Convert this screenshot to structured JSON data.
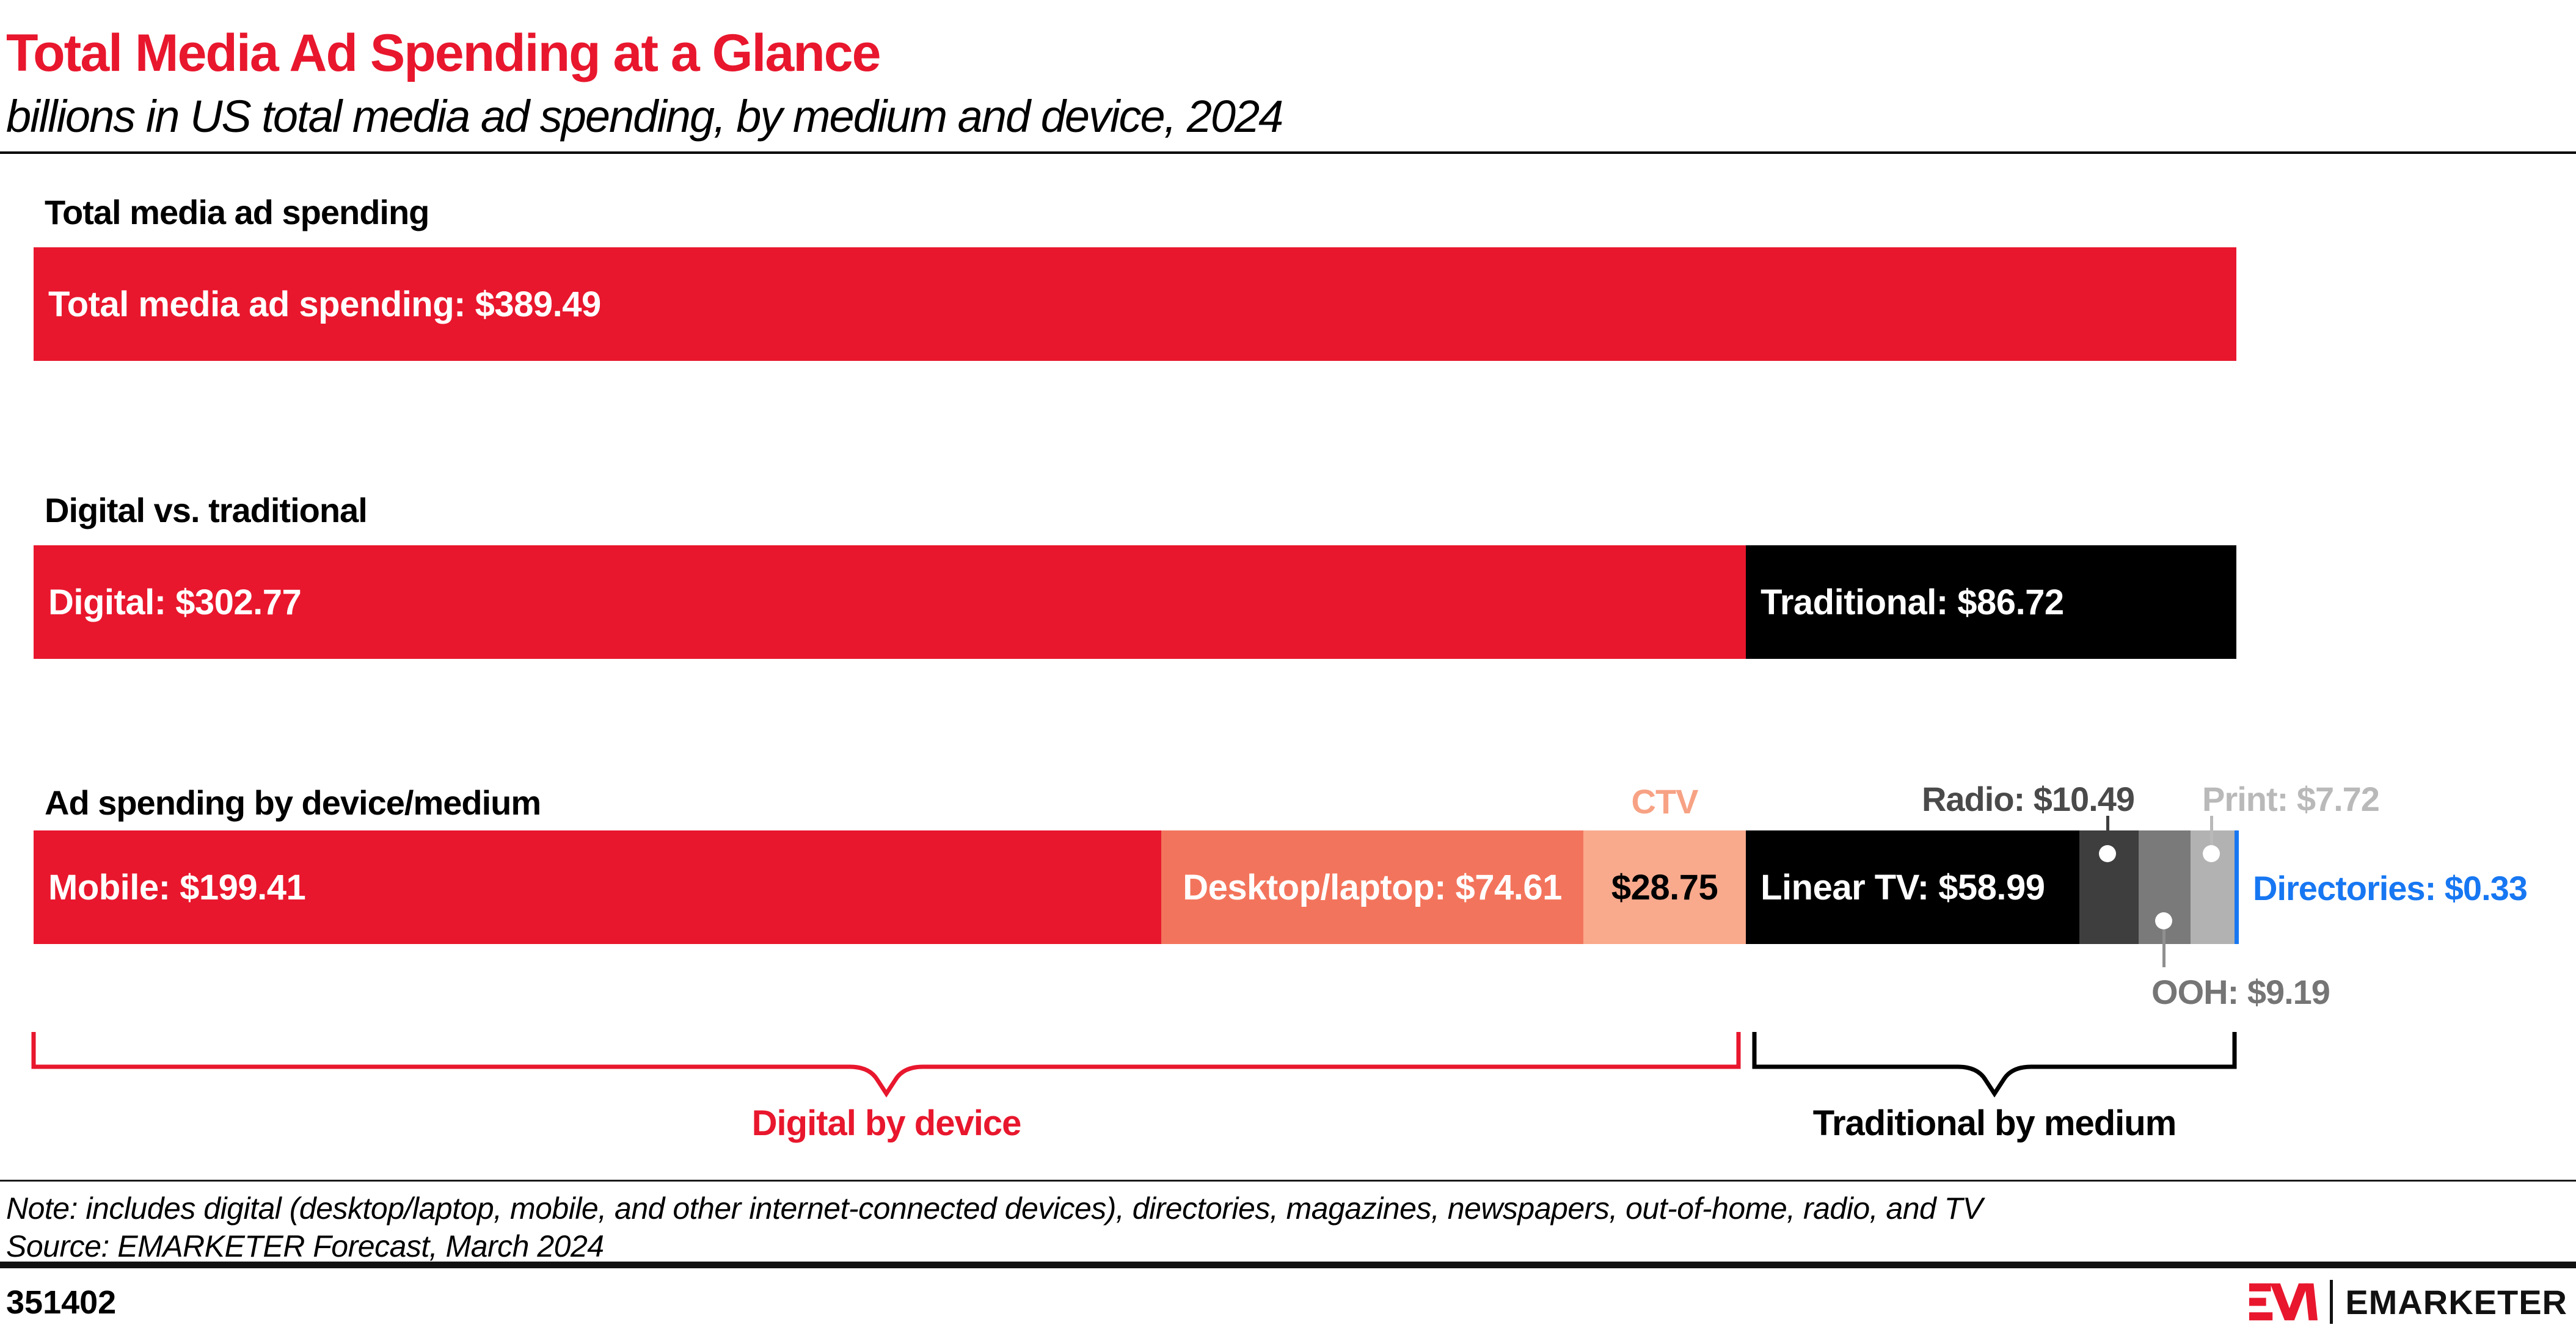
{
  "header": {
    "title": "Total Media Ad Spending at a Glance",
    "subtitle": "billions in US total media ad spending, by medium and device, 2024"
  },
  "colors": {
    "brand_red": "#e8172d",
    "salmon": "#f3745c",
    "light_salmon": "#f9a98c",
    "black": "#000000",
    "dark_gray": "#3e3e3e",
    "mid_gray": "#7a7a7a",
    "light_gray": "#b2b2b2",
    "blue": "#1777f2"
  },
  "chart_data": {
    "type": "bar",
    "orientation": "horizontal_stacked",
    "title": "Total Media Ad Spending at a Glance",
    "subtitle": "billions in US total media ad spending, by medium and device, 2024",
    "unit": "USD billions",
    "xlim": [
      0,
      389.49
    ],
    "axis": "none",
    "rows": [
      {
        "section_label": "Total media ad spending",
        "segments": [
          {
            "name": "total",
            "label": "Total media ad spending: $389.49",
            "value": 389.49,
            "color": "#e8172d",
            "text_color": "#ffffff",
            "label_pos": "inside-left"
          }
        ]
      },
      {
        "section_label": "Digital vs. traditional",
        "segments": [
          {
            "name": "digital",
            "label": "Digital: $302.77",
            "value": 302.77,
            "color": "#e8172d",
            "text_color": "#ffffff",
            "label_pos": "inside-left"
          },
          {
            "name": "traditional",
            "label": "Traditional: $86.72",
            "value": 86.72,
            "color": "#000000",
            "text_color": "#ffffff",
            "label_pos": "inside-left"
          }
        ]
      },
      {
        "section_label": "Ad spending by device/medium",
        "segments": [
          {
            "name": "mobile",
            "label": "Mobile: $199.41",
            "value": 199.41,
            "color": "#e8172d",
            "text_color": "#ffffff",
            "label_pos": "inside-left"
          },
          {
            "name": "desktop-laptop",
            "label": "Desktop/laptop: $74.61",
            "value": 74.61,
            "color": "#f3745c",
            "text_color": "#ffffff",
            "label_pos": "inside-center"
          },
          {
            "name": "ctv",
            "label": "$28.75",
            "value": 28.75,
            "color": "#f9a98c",
            "text_color": "#000000",
            "label_pos": "inside-center",
            "callout": "CTV",
            "callout_color": "#f7a284"
          },
          {
            "name": "linear-tv",
            "label": "Linear TV: $58.99",
            "value": 58.99,
            "color": "#000000",
            "text_color": "#ffffff",
            "label_pos": "inside-left"
          },
          {
            "name": "radio",
            "label": "Radio: $10.49",
            "value": 10.49,
            "color": "#3e3e3e",
            "label_color": "#4a4a4a",
            "label_pos": "none"
          },
          {
            "name": "ooh",
            "label": "OOH: $9.19",
            "value": 9.19,
            "color": "#7a7a7a",
            "label_color": "#757575",
            "label_pos": "none"
          },
          {
            "name": "print",
            "label": "Print: $7.72",
            "value": 7.72,
            "color": "#b2b2b2",
            "label_color": "#b9b9b9",
            "label_pos": "none"
          },
          {
            "name": "directories",
            "label": "Directories: $0.33",
            "value": 0.33,
            "color": "#1777f2",
            "label_color": "#1777f2",
            "label_pos": "none"
          }
        ]
      }
    ]
  },
  "annotations": {
    "digital_brace_label": "Digital by device",
    "traditional_brace_label": "Traditional by medium"
  },
  "notes": {
    "note": "Note: includes digital (desktop/laptop, mobile, and other internet-connected devices), directories, magazines, newspapers, out-of-home, radio, and TV",
    "source": "Source: EMARKETER Forecast, March 2024"
  },
  "footer": {
    "chart_id": "351402",
    "brand_name": "EMARKETER"
  }
}
